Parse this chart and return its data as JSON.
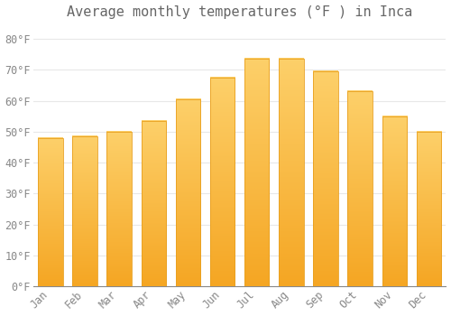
{
  "months": [
    "Jan",
    "Feb",
    "Mar",
    "Apr",
    "May",
    "Jun",
    "Jul",
    "Aug",
    "Sep",
    "Oct",
    "Nov",
    "Dec"
  ],
  "values": [
    48,
    48.5,
    50,
    53.5,
    60.5,
    67.5,
    73.5,
    73.5,
    69.5,
    63,
    55,
    50
  ],
  "bar_color_top": "#FDD06A",
  "bar_color_bottom": "#F5A623",
  "bar_edge_color": "#E8A020",
  "title": "Average monthly temperatures (°F ) in Inca",
  "ylim": [
    0,
    85
  ],
  "yticks": [
    0,
    10,
    20,
    30,
    40,
    50,
    60,
    70,
    80
  ],
  "background_color": "#ffffff",
  "grid_color": "#e8e8e8",
  "title_fontsize": 11,
  "tick_fontsize": 8.5,
  "title_color": "#666666",
  "tick_color": "#888888",
  "bar_width": 0.72
}
